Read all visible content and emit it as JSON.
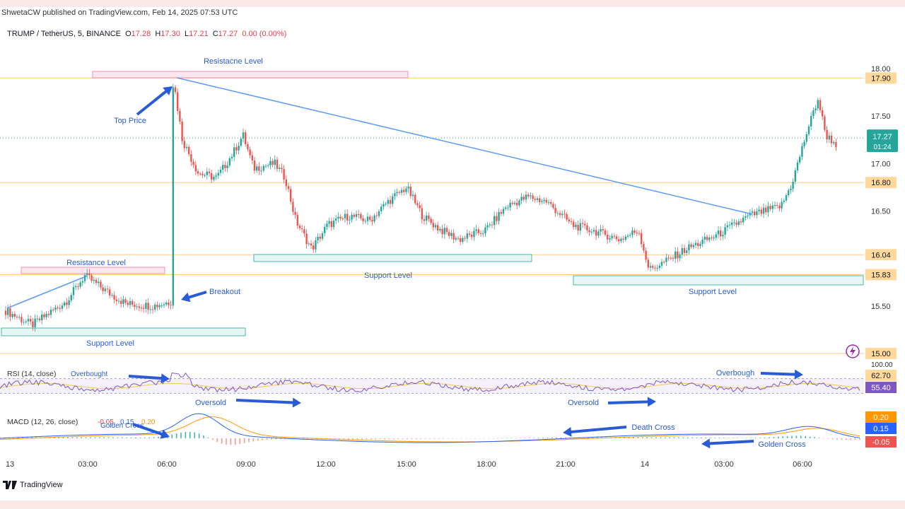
{
  "publisher": "ShwetaCW published on TradingView.com, Feb 14, 2025 07:53 UTC",
  "symbol": {
    "name": "TRUMP / TetherUS, 5, BINANCE",
    "o_label": "O",
    "o": "17.28",
    "h_label": "H",
    "h": "17.30",
    "l_label": "L",
    "l": "17.21",
    "c_label": "C",
    "c": "17.27",
    "change": "0.00 (0.00%)"
  },
  "brand": "TradingView",
  "colors": {
    "up": "#26a69a",
    "down": "#ef5350",
    "trend": "#5b9cf5",
    "annotation": "#2a5bd7",
    "resistance": "#f48fb1",
    "support": "#4db6ac",
    "level": "#ffcc80"
  },
  "chart_data": [
    {
      "type": "candlestick",
      "ylim": [
        15.0,
        18.0
      ],
      "y_ticks": [
        "18.00",
        "17.50",
        "17.00",
        "16.50",
        "15.50"
      ],
      "x_ticks": [
        "13",
        "03:00",
        "06:00",
        "09:00",
        "12:00",
        "15:00",
        "18:00",
        "21:00",
        "14",
        "03:00",
        "06:00"
      ],
      "price_labels": [
        {
          "value": 17.9,
          "text": "17.90",
          "style": "level"
        },
        {
          "value": 17.27,
          "text": "17.27",
          "sub": "01:24",
          "style": "last"
        },
        {
          "value": 16.8,
          "text": "16.80",
          "style": "level"
        },
        {
          "value": 16.04,
          "text": "16.04",
          "style": "level"
        },
        {
          "value": 15.83,
          "text": "15.83",
          "style": "level"
        },
        {
          "value": 15.0,
          "text": "15.00",
          "style": "level"
        }
      ],
      "horizontal_levels": [
        17.9,
        16.8,
        16.04,
        15.83,
        15.0
      ],
      "last_price": 17.27,
      "path": [
        [
          0,
          15.45
        ],
        [
          1.0,
          15.3
        ],
        [
          2.3,
          15.55
        ],
        [
          3.0,
          15.82
        ],
        [
          4.0,
          15.62
        ],
        [
          4.6,
          15.52
        ],
        [
          5.6,
          15.5
        ],
        [
          6.3,
          15.55
        ],
        [
          6.35,
          17.9
        ],
        [
          6.7,
          17.25
        ],
        [
          7.3,
          16.9
        ],
        [
          8.0,
          16.85
        ],
        [
          8.6,
          17.1
        ],
        [
          9.0,
          17.3
        ],
        [
          9.4,
          16.95
        ],
        [
          10.2,
          17.0
        ],
        [
          10.6,
          16.85
        ],
        [
          11.0,
          16.4
        ],
        [
          11.6,
          16.1
        ],
        [
          12.2,
          16.35
        ],
        [
          13.0,
          16.45
        ],
        [
          13.8,
          16.4
        ],
        [
          14.5,
          16.6
        ],
        [
          15.2,
          16.75
        ],
        [
          15.8,
          16.45
        ],
        [
          16.5,
          16.3
        ],
        [
          17.2,
          16.2
        ],
        [
          18.2,
          16.3
        ],
        [
          19.0,
          16.55
        ],
        [
          19.8,
          16.65
        ],
        [
          20.5,
          16.6
        ],
        [
          21.5,
          16.35
        ],
        [
          22.2,
          16.3
        ],
        [
          23.3,
          16.2
        ],
        [
          24.0,
          16.3
        ],
        [
          24.4,
          15.88
        ],
        [
          25.1,
          15.98
        ],
        [
          25.8,
          16.1
        ],
        [
          27.0,
          16.25
        ],
        [
          28.2,
          16.45
        ],
        [
          29.4,
          16.55
        ],
        [
          29.8,
          16.78
        ],
        [
          30.4,
          17.35
        ],
        [
          30.8,
          17.68
        ],
        [
          31.1,
          17.3
        ],
        [
          31.5,
          17.2
        ]
      ]
    },
    {
      "type": "line",
      "title": "RSI (14, close)",
      "values_shown": [
        "62.70",
        "55.40"
      ],
      "top_label": "100.00",
      "ylim": [
        0,
        100
      ],
      "levels": [
        70,
        30
      ]
    },
    {
      "type": "line",
      "title": "MACD (12, 26, close)",
      "values_shown": [
        "-0.05",
        "0.15",
        "0.20"
      ],
      "axis_labels": [
        "0.20",
        "0.15",
        "-0.05"
      ]
    }
  ],
  "annotations": {
    "resistance_top": "Resistacne Level",
    "top_price": "Top Price",
    "resistance_left": "Resistance Level",
    "breakout": "Breakout",
    "support_left": "Support Level",
    "support_mid": "Support Level",
    "support_right": "Support Level",
    "rsi_overbought_left": "Overbought",
    "oversold_1": "Oversold",
    "oversold_2": "Oversold",
    "overbought_right": "Overbough",
    "golden_cross_left": "Golden Cross",
    "death_cross": "Death Cross",
    "golden_cross_right": "Golden Cross"
  }
}
